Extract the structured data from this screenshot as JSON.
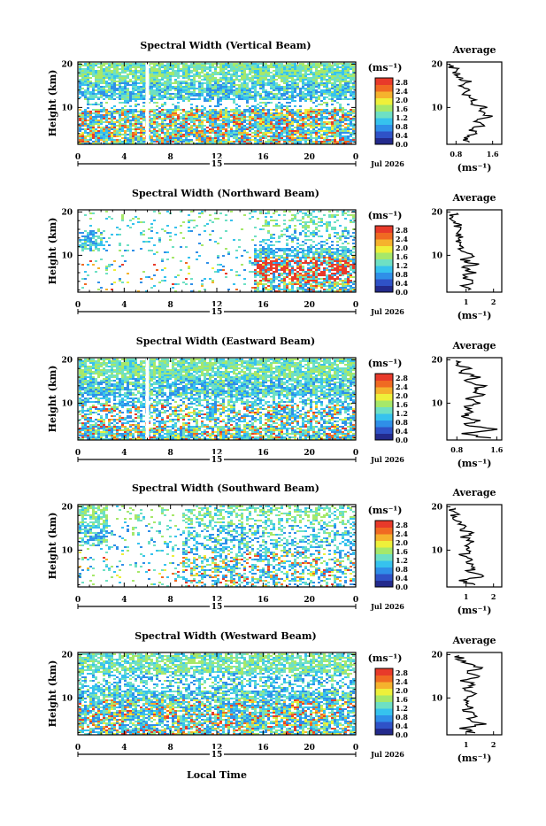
{
  "chart_data": {
    "type": "heatmap",
    "xlabel": "Local Time",
    "ylabel": "Height (km)",
    "date_label": "Jul 2026",
    "day_label": "15",
    "x_ticks": [
      "0",
      "4",
      "8",
      "12",
      "16",
      "20",
      "0"
    ],
    "y_ticks": [
      "20",
      "10"
    ],
    "xlim": [
      0,
      24
    ],
    "ylim": [
      1.5,
      20.5
    ],
    "colorbar": {
      "unit": "(ms⁻¹)",
      "ticks": [
        "2.8",
        "2.4",
        "2.0",
        "1.6",
        "1.2",
        "0.8",
        "0.4",
        "0.0"
      ],
      "range": [
        0.0,
        3.0
      ],
      "colors": [
        "#232a8c",
        "#2f52c7",
        "#2f8fe8",
        "#36c2ee",
        "#6ee0c4",
        "#a6e86a",
        "#eef03a",
        "#f5b22d",
        "#f06a22",
        "#e83a2a"
      ]
    },
    "panels": [
      {
        "title": "Spectral Width (Vertical Beam)",
        "avg_title": "Average",
        "avg_xlabel": "(ms⁻¹)",
        "avg_xticks": [
          "0.8",
          "1.6"
        ],
        "avg_xlim": [
          0.6,
          1.8
        ],
        "avg_profile": [
          [
            1.05,
            2
          ],
          [
            0.95,
            3
          ],
          [
            1.3,
            4
          ],
          [
            1.1,
            5
          ],
          [
            1.4,
            6
          ],
          [
            1.2,
            7
          ],
          [
            1.5,
            8
          ],
          [
            1.3,
            9
          ],
          [
            1.4,
            10
          ],
          [
            1.1,
            11
          ],
          [
            1.2,
            12
          ],
          [
            0.95,
            13
          ],
          [
            1.1,
            14
          ],
          [
            0.9,
            15
          ],
          [
            1.05,
            16
          ],
          [
            0.85,
            17
          ],
          [
            0.8,
            18
          ],
          [
            0.75,
            19
          ],
          [
            0.7,
            20
          ]
        ]
      },
      {
        "title": "Spectral Width (Northward Beam)",
        "avg_title": "Average",
        "avg_xlabel": "(ms⁻¹)",
        "avg_xticks": [
          "1",
          "2"
        ],
        "avg_xlim": [
          0.3,
          2.3
        ],
        "avg_profile": [
          [
            1.1,
            2
          ],
          [
            0.8,
            3
          ],
          [
            1.4,
            4
          ],
          [
            0.9,
            5
          ],
          [
            1.2,
            6
          ],
          [
            0.9,
            7
          ],
          [
            1.3,
            8
          ],
          [
            0.9,
            9
          ],
          [
            1.2,
            10
          ],
          [
            0.8,
            11
          ],
          [
            1.0,
            12
          ],
          [
            0.7,
            13
          ],
          [
            0.9,
            14
          ],
          [
            0.6,
            15
          ],
          [
            0.8,
            16
          ],
          [
            0.7,
            17
          ],
          [
            0.6,
            18
          ],
          [
            0.55,
            19
          ],
          [
            0.5,
            20
          ]
        ]
      },
      {
        "title": "Spectral Width (Eastward Beam)",
        "avg_title": "Average",
        "avg_xlabel": "(ms⁻¹)",
        "avg_xticks": [
          "0.8",
          "1.6"
        ],
        "avg_xlim": [
          0.6,
          1.7
        ],
        "avg_profile": [
          [
            1.4,
            2
          ],
          [
            0.9,
            3
          ],
          [
            1.6,
            4
          ],
          [
            1.0,
            5
          ],
          [
            1.2,
            6
          ],
          [
            0.9,
            7
          ],
          [
            1.1,
            8
          ],
          [
            1.0,
            9
          ],
          [
            1.2,
            10
          ],
          [
            1.0,
            11
          ],
          [
            1.3,
            12
          ],
          [
            1.1,
            13
          ],
          [
            1.3,
            14
          ],
          [
            1.0,
            15
          ],
          [
            1.2,
            16
          ],
          [
            0.9,
            17
          ],
          [
            1.0,
            18
          ],
          [
            0.8,
            19
          ],
          [
            0.75,
            20
          ]
        ]
      },
      {
        "title": "Spectral Width (Southward Beam)",
        "avg_title": "Average",
        "avg_xlabel": "(ms⁻¹)",
        "avg_xticks": [
          "1",
          "2"
        ],
        "avg_xlim": [
          0.3,
          2.3
        ],
        "avg_profile": [
          [
            1.2,
            2
          ],
          [
            0.8,
            3
          ],
          [
            1.7,
            4
          ],
          [
            1.0,
            5
          ],
          [
            1.4,
            6
          ],
          [
            1.0,
            7
          ],
          [
            1.3,
            8
          ],
          [
            0.9,
            9
          ],
          [
            1.1,
            10
          ],
          [
            1.0,
            11
          ],
          [
            1.3,
            12
          ],
          [
            0.9,
            13
          ],
          [
            1.1,
            14
          ],
          [
            0.8,
            15
          ],
          [
            0.9,
            16
          ],
          [
            0.7,
            17
          ],
          [
            0.6,
            18
          ],
          [
            0.55,
            19
          ],
          [
            0.5,
            20
          ]
        ]
      },
      {
        "title": "Spectral Width (Westward Beam)",
        "avg_title": "Average",
        "avg_xlabel": "(ms⁻¹)",
        "avg_xticks": [
          "1",
          "2"
        ],
        "avg_xlim": [
          0.3,
          2.3
        ],
        "avg_profile": [
          [
            1.2,
            2
          ],
          [
            0.9,
            3
          ],
          [
            1.6,
            4
          ],
          [
            1.1,
            5
          ],
          [
            1.3,
            6
          ],
          [
            1.0,
            7
          ],
          [
            1.2,
            8
          ],
          [
            0.9,
            9
          ],
          [
            1.1,
            10
          ],
          [
            1.4,
            11
          ],
          [
            1.0,
            12
          ],
          [
            1.3,
            13
          ],
          [
            0.9,
            14
          ],
          [
            1.5,
            15
          ],
          [
            1.0,
            16
          ],
          [
            1.6,
            17
          ],
          [
            0.9,
            18
          ],
          [
            0.8,
            19
          ],
          [
            0.7,
            20
          ]
        ]
      }
    ]
  }
}
